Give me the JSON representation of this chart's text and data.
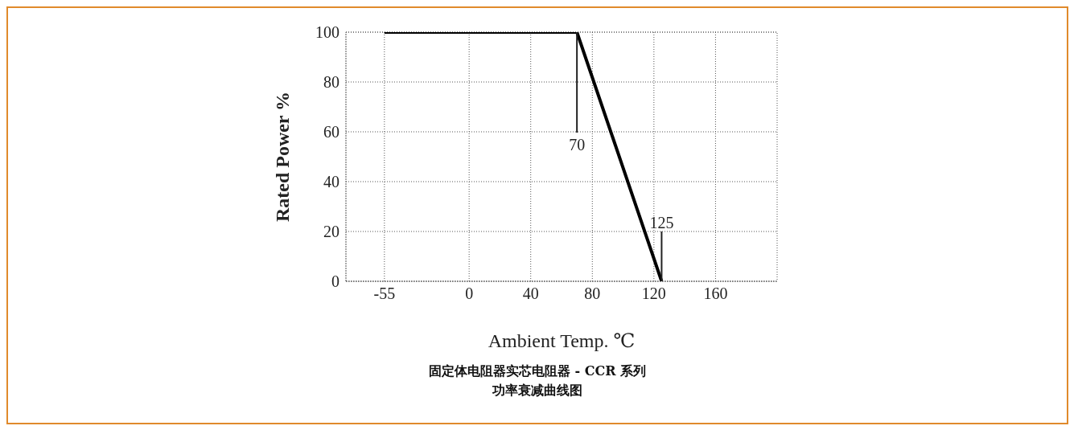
{
  "chart_data": {
    "type": "line",
    "xlabel": "Ambient Temp. ℃",
    "ylabel": "Rated Power %",
    "x": [
      -55,
      70,
      125
    ],
    "series": [
      {
        "color": "#000000",
        "values": [
          100,
          100,
          0
        ]
      }
    ],
    "xlim": [
      -80,
      200
    ],
    "xticks": [
      -55,
      0,
      40,
      80,
      120,
      160
    ],
    "ylim": [
      0,
      100
    ],
    "yticks": [
      0,
      20,
      40,
      60,
      80,
      100
    ],
    "grid": true,
    "legend": false,
    "marker": "none",
    "line_style": "solid",
    "annotations": [
      {
        "text": "70",
        "x": 70,
        "y": 100
      },
      {
        "text": "125",
        "x": 125,
        "y": 0
      },
      "固定体电阻器实芯电阻器 - CCR 系列",
      "功率衰减曲线图"
    ]
  }
}
